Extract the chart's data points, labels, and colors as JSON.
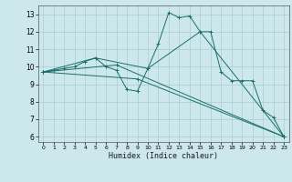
{
  "xlabel": "Humidex (Indice chaleur)",
  "bg_color": "#cce8ec",
  "grid_color": "#aacccc",
  "line_color": "#1a6e6a",
  "xlim": [
    -0.5,
    23.5
  ],
  "ylim": [
    5.7,
    13.5
  ],
  "yticks": [
    6,
    7,
    8,
    9,
    10,
    11,
    12,
    13
  ],
  "xticks": [
    0,
    1,
    2,
    3,
    4,
    5,
    6,
    7,
    8,
    9,
    10,
    11,
    12,
    13,
    14,
    15,
    16,
    17,
    18,
    19,
    20,
    21,
    22,
    23
  ],
  "line1": {
    "x": [
      0,
      1,
      2,
      3,
      4,
      5,
      6,
      7,
      8,
      9,
      10,
      11,
      12,
      13,
      14,
      15,
      16,
      17,
      18,
      19,
      20,
      21,
      22,
      23
    ],
    "y": [
      9.7,
      9.8,
      9.9,
      10.0,
      10.3,
      10.5,
      10.0,
      9.8,
      8.7,
      8.6,
      9.9,
      11.3,
      13.1,
      12.8,
      12.9,
      12.0,
      12.0,
      9.7,
      9.2,
      9.2,
      9.2,
      7.5,
      7.1,
      6.0
    ]
  },
  "line2": {
    "x": [
      0,
      5,
      10,
      15,
      23
    ],
    "y": [
      9.7,
      10.5,
      9.9,
      12.0,
      6.0
    ]
  },
  "line3": {
    "x": [
      0,
      9,
      23
    ],
    "y": [
      9.7,
      9.3,
      6.0
    ]
  },
  "line4": {
    "x": [
      0,
      7,
      23
    ],
    "y": [
      9.7,
      10.1,
      6.0
    ]
  }
}
